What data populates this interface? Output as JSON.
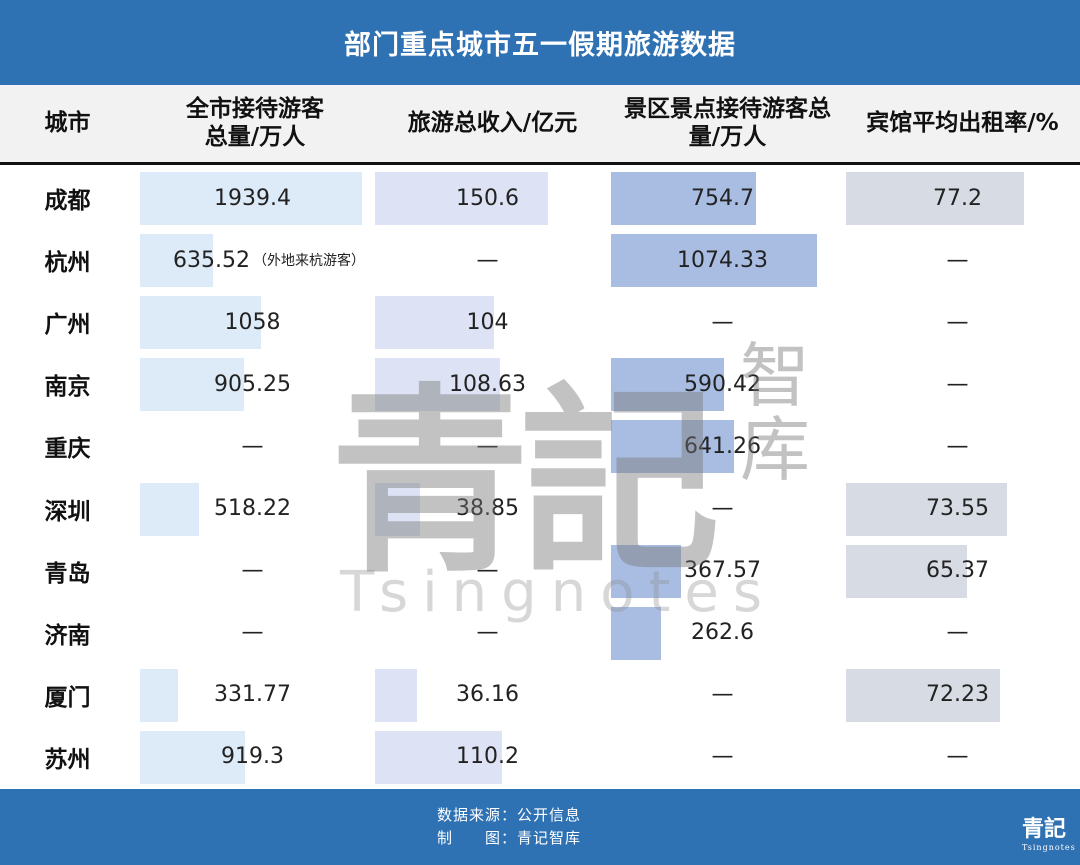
{
  "title": "部门重点城市五一假期旅游数据",
  "chart_data": {
    "type": "table",
    "columns": [
      "城市",
      "全市接待游客总量/万人",
      "旅游总收入/亿元",
      "景区景点接待游客总量/万人",
      "宾馆平均出租率/%"
    ],
    "empty_symbol": "—",
    "rows": [
      {
        "city": "成都",
        "values": [
          1939.4,
          150.6,
          754.7,
          77.2
        ],
        "labels": [
          "1939.4",
          "150.6",
          "754.7",
          "77.2"
        ],
        "note": ""
      },
      {
        "city": "杭州",
        "values": [
          635.52,
          null,
          1074.33,
          null
        ],
        "labels": [
          "635.52",
          "—",
          "1074.33",
          "—"
        ],
        "note": "（外地来杭游客）"
      },
      {
        "city": "广州",
        "values": [
          1058,
          104,
          null,
          null
        ],
        "labels": [
          "1058",
          "104",
          "—",
          "—"
        ],
        "note": ""
      },
      {
        "city": "南京",
        "values": [
          905.25,
          108.63,
          590.42,
          null
        ],
        "labels": [
          "905.25",
          "108.63",
          "590.42",
          "—"
        ],
        "note": ""
      },
      {
        "city": "重庆",
        "values": [
          null,
          null,
          641.26,
          null
        ],
        "labels": [
          "—",
          "—",
          "641.26",
          "—"
        ],
        "note": ""
      },
      {
        "city": "深圳",
        "values": [
          518.22,
          38.85,
          null,
          73.55
        ],
        "labels": [
          "518.22",
          "38.85",
          "—",
          "73.55"
        ],
        "note": ""
      },
      {
        "city": "青岛",
        "values": [
          null,
          null,
          367.57,
          65.37
        ],
        "labels": [
          "—",
          "—",
          "367.57",
          "65.37"
        ],
        "note": ""
      },
      {
        "city": "济南",
        "values": [
          null,
          null,
          262.6,
          null
        ],
        "labels": [
          "—",
          "—",
          "262.6",
          "—"
        ],
        "note": ""
      },
      {
        "city": "厦门",
        "values": [
          331.77,
          36.16,
          null,
          72.23
        ],
        "labels": [
          "331.77",
          "36.16",
          "—",
          "72.23"
        ],
        "note": ""
      },
      {
        "city": "苏州",
        "values": [
          919.3,
          110.2,
          null,
          null
        ],
        "labels": [
          "919.3",
          "110.2",
          "—",
          "—"
        ],
        "note": ""
      }
    ],
    "column_colors": [
      "#ddeaf7",
      "#dde3f4",
      "#a9bde3",
      "#d7dce4"
    ]
  },
  "footer": {
    "source": "数据来源：公开信息",
    "made_by": "制　　图：青记智库",
    "logo_text": "青記",
    "logo_sub": "Tsingnotes"
  },
  "watermark": {
    "big": "青記",
    "small": "智库",
    "latin": "Tsingnotes"
  }
}
